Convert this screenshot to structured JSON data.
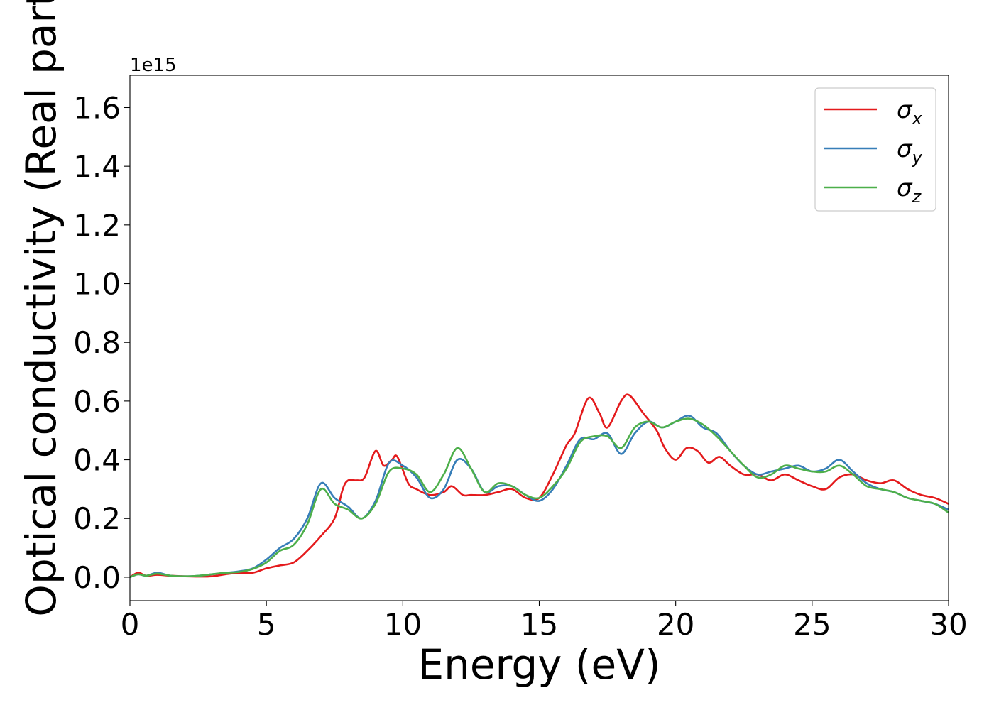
{
  "chart_data": {
    "type": "line",
    "xlabel": "Energy (eV)",
    "ylabel": "Optical conductivity (Real part)",
    "y_multiplier": "1e15",
    "xlim": [
      0,
      30
    ],
    "ylim": [
      -0.08,
      1.71
    ],
    "x_ticks": [
      0,
      5,
      10,
      15,
      20,
      25,
      30
    ],
    "x_tick_labels": [
      "0",
      "5",
      "10",
      "15",
      "20",
      "25",
      "30"
    ],
    "y_ticks": [
      0.0,
      0.2,
      0.4,
      0.6,
      0.8,
      1.0,
      1.2,
      1.4,
      1.6
    ],
    "y_tick_labels": [
      "0.0",
      "0.2",
      "0.4",
      "0.6",
      "0.8",
      "1.0",
      "1.2",
      "1.4",
      "1.6"
    ],
    "grid": false,
    "legend_position": "top-right",
    "legend": [
      {
        "symbol": "σ",
        "subscript": "x",
        "color": "#e41a1c"
      },
      {
        "symbol": "σ",
        "subscript": "y",
        "color": "#377eb8"
      },
      {
        "symbol": "σ",
        "subscript": "z",
        "color": "#4daf4a"
      }
    ],
    "series": [
      {
        "color": "#e41a1c",
        "x": [
          0,
          0.3,
          0.6,
          1,
          1.5,
          2,
          2.5,
          3,
          3.5,
          4,
          4.5,
          5,
          5.5,
          6,
          6.5,
          7,
          7.5,
          7.8,
          8,
          8.3,
          8.6,
          9,
          9.3,
          9.6,
          9.8,
          10.2,
          10.5,
          11,
          11.5,
          11.8,
          12.2,
          12.5,
          13,
          13.5,
          14,
          14.5,
          15,
          15.5,
          16,
          16.3,
          16.8,
          17.2,
          17.5,
          18,
          18.3,
          18.8,
          19.3,
          19.6,
          20,
          20.4,
          20.8,
          21.2,
          21.6,
          22,
          22.5,
          23,
          23.5,
          24,
          24.5,
          25,
          25.5,
          26,
          26.5,
          27,
          27.5,
          28,
          28.5,
          29,
          29.5,
          30
        ],
        "y": [
          0,
          0.015,
          0.005,
          0.008,
          0.005,
          0.003,
          0.002,
          0.003,
          0.01,
          0.015,
          0.015,
          0.03,
          0.04,
          0.05,
          0.09,
          0.14,
          0.2,
          0.3,
          0.33,
          0.33,
          0.34,
          0.43,
          0.38,
          0.4,
          0.41,
          0.32,
          0.3,
          0.28,
          0.29,
          0.31,
          0.28,
          0.28,
          0.28,
          0.29,
          0.3,
          0.27,
          0.27,
          0.35,
          0.45,
          0.49,
          0.61,
          0.56,
          0.51,
          0.6,
          0.62,
          0.56,
          0.5,
          0.44,
          0.4,
          0.44,
          0.43,
          0.39,
          0.41,
          0.38,
          0.35,
          0.35,
          0.33,
          0.35,
          0.33,
          0.31,
          0.3,
          0.34,
          0.35,
          0.33,
          0.32,
          0.33,
          0.3,
          0.28,
          0.27,
          0.25
        ]
      },
      {
        "color": "#377eb8",
        "x": [
          0,
          0.3,
          0.6,
          1,
          1.5,
          2,
          2.5,
          3,
          3.5,
          4,
          4.5,
          5,
          5.5,
          6,
          6.5,
          7,
          7.5,
          8,
          8.5,
          9,
          9.5,
          10,
          10.5,
          11,
          11.5,
          12,
          12.5,
          13,
          13.5,
          14,
          14.5,
          15,
          15.5,
          16,
          16.5,
          17,
          17.5,
          18,
          18.5,
          19,
          19.5,
          20,
          20.5,
          21,
          21.5,
          22,
          22.5,
          23,
          23.5,
          24,
          24.5,
          25,
          25.5,
          26,
          26.5,
          27,
          27.5,
          28,
          28.5,
          29,
          29.5,
          30
        ],
        "y": [
          0,
          0.01,
          0.005,
          0.015,
          0.005,
          0.003,
          0.005,
          0.01,
          0.015,
          0.02,
          0.03,
          0.06,
          0.1,
          0.13,
          0.2,
          0.32,
          0.27,
          0.24,
          0.2,
          0.26,
          0.39,
          0.38,
          0.34,
          0.27,
          0.3,
          0.4,
          0.37,
          0.29,
          0.31,
          0.31,
          0.28,
          0.26,
          0.3,
          0.38,
          0.47,
          0.47,
          0.49,
          0.42,
          0.49,
          0.53,
          0.51,
          0.53,
          0.55,
          0.51,
          0.49,
          0.43,
          0.38,
          0.35,
          0.36,
          0.37,
          0.38,
          0.36,
          0.37,
          0.4,
          0.36,
          0.32,
          0.3,
          0.29,
          0.27,
          0.26,
          0.25,
          0.23
        ]
      },
      {
        "color": "#4daf4a",
        "x": [
          0,
          0.3,
          0.6,
          1,
          1.5,
          2,
          2.5,
          3,
          3.5,
          4,
          4.5,
          5,
          5.5,
          6,
          6.5,
          7,
          7.5,
          8,
          8.5,
          9,
          9.5,
          10,
          10.5,
          11,
          11.5,
          12,
          12.5,
          13,
          13.5,
          14,
          14.5,
          15,
          15.5,
          16,
          16.5,
          17,
          17.5,
          18,
          18.5,
          19,
          19.5,
          20,
          20.5,
          21,
          21.5,
          22,
          22.5,
          23,
          23.5,
          24,
          24.5,
          25,
          25.5,
          26,
          26.5,
          27,
          27.5,
          28,
          28.5,
          29,
          29.5,
          30
        ],
        "y": [
          0,
          0.01,
          0.005,
          0.012,
          0.005,
          0.003,
          0.005,
          0.01,
          0.015,
          0.018,
          0.028,
          0.05,
          0.09,
          0.11,
          0.18,
          0.3,
          0.25,
          0.23,
          0.2,
          0.25,
          0.36,
          0.37,
          0.35,
          0.29,
          0.35,
          0.44,
          0.37,
          0.29,
          0.32,
          0.31,
          0.28,
          0.27,
          0.31,
          0.37,
          0.46,
          0.48,
          0.48,
          0.44,
          0.51,
          0.53,
          0.51,
          0.53,
          0.54,
          0.52,
          0.48,
          0.43,
          0.38,
          0.34,
          0.35,
          0.38,
          0.37,
          0.36,
          0.36,
          0.38,
          0.35,
          0.31,
          0.3,
          0.29,
          0.27,
          0.26,
          0.25,
          0.22
        ]
      }
    ]
  }
}
